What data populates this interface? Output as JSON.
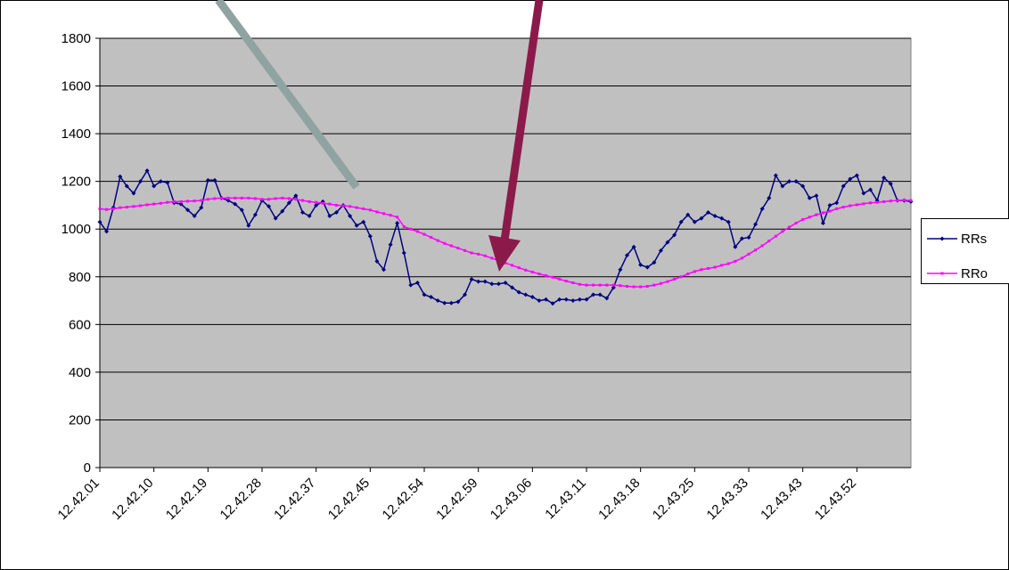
{
  "chart_data": {
    "type": "line",
    "categories": [
      "12.42.01",
      null,
      null,
      null,
      null,
      null,
      null,
      null,
      "12.42.10",
      null,
      null,
      null,
      null,
      null,
      null,
      null,
      "12.42.19",
      null,
      null,
      null,
      null,
      null,
      null,
      null,
      "12.42.28",
      null,
      null,
      null,
      null,
      null,
      null,
      null,
      "12.42.37",
      null,
      null,
      null,
      null,
      null,
      null,
      null,
      "12.42.45",
      null,
      null,
      null,
      null,
      null,
      null,
      null,
      "12.42.54",
      null,
      null,
      null,
      null,
      null,
      null,
      null,
      "12.42.59",
      null,
      null,
      null,
      null,
      null,
      null,
      null,
      "12.43.06",
      null,
      null,
      null,
      null,
      null,
      null,
      null,
      "12.43.11",
      null,
      null,
      null,
      null,
      null,
      null,
      null,
      "12.43.18",
      null,
      null,
      null,
      null,
      null,
      null,
      null,
      "12.43.25",
      null,
      null,
      null,
      null,
      null,
      null,
      null,
      "12.43.33",
      null,
      null,
      null,
      null,
      null,
      null,
      null,
      "12.43.43",
      null,
      null,
      null,
      null,
      null,
      null,
      null,
      "12.43.52",
      null,
      null,
      null,
      null,
      null,
      null,
      null,
      null
    ],
    "series": [
      {
        "name": "RRs",
        "color": "#000080",
        "values": [
          1030,
          990,
          1090,
          1220,
          1180,
          1150,
          1200,
          1245,
          1180,
          1200,
          1195,
          1110,
          1105,
          1080,
          1055,
          1090,
          1205,
          1205,
          1130,
          1120,
          1105,
          1080,
          1015,
          1060,
          1120,
          1095,
          1045,
          1075,
          1110,
          1140,
          1070,
          1055,
          1100,
          1115,
          1055,
          1070,
          1100,
          1055,
          1015,
          1030,
          970,
          865,
          830,
          935,
          1025,
          900,
          765,
          775,
          725,
          715,
          700,
          690,
          690,
          695,
          725,
          790,
          780,
          780,
          770,
          770,
          775,
          755,
          735,
          725,
          715,
          700,
          705,
          688,
          705,
          705,
          700,
          705,
          705,
          725,
          725,
          710,
          755,
          830,
          890,
          925,
          850,
          840,
          860,
          910,
          945,
          975,
          1030,
          1060,
          1030,
          1045,
          1070,
          1055,
          1045,
          1030,
          925,
          960,
          965,
          1020,
          1085,
          1130,
          1225,
          1180,
          1200,
          1200,
          1180,
          1130,
          1140,
          1025,
          1100,
          1110,
          1180,
          1210,
          1225,
          1150,
          1165,
          1120,
          1215,
          1190,
          1120,
          1120,
          1115
        ]
      },
      {
        "name": "RRo",
        "color": "#ff00ff",
        "values": [
          1085,
          1082,
          1085,
          1090,
          1092,
          1095,
          1098,
          1102,
          1105,
          1108,
          1112,
          1115,
          1115,
          1117,
          1118,
          1120,
          1125,
          1128,
          1130,
          1130,
          1130,
          1130,
          1130,
          1128,
          1125,
          1125,
          1128,
          1130,
          1128,
          1125,
          1120,
          1115,
          1112,
          1108,
          1105,
          1100,
          1098,
          1095,
          1090,
          1085,
          1080,
          1072,
          1065,
          1058,
          1050,
          1010,
          1000,
          990,
          978,
          965,
          952,
          940,
          930,
          920,
          910,
          900,
          895,
          888,
          878,
          868,
          858,
          848,
          838,
          828,
          820,
          812,
          805,
          798,
          790,
          782,
          775,
          768,
          765,
          765,
          765,
          765,
          765,
          763,
          760,
          758,
          758,
          760,
          765,
          772,
          780,
          790,
          800,
          812,
          822,
          830,
          835,
          840,
          848,
          855,
          865,
          878,
          895,
          912,
          930,
          950,
          970,
          990,
          1008,
          1025,
          1040,
          1050,
          1060,
          1068,
          1075,
          1085,
          1092,
          1098,
          1102,
          1106,
          1110,
          1112,
          1115,
          1118,
          1120,
          1122,
          1120
        ]
      }
    ],
    "ylim": [
      0,
      1800
    ],
    "yticks": [
      0,
      200,
      400,
      600,
      800,
      1000,
      1200,
      1400,
      1600,
      1800
    ],
    "grid": true,
    "legend": "right"
  }
}
